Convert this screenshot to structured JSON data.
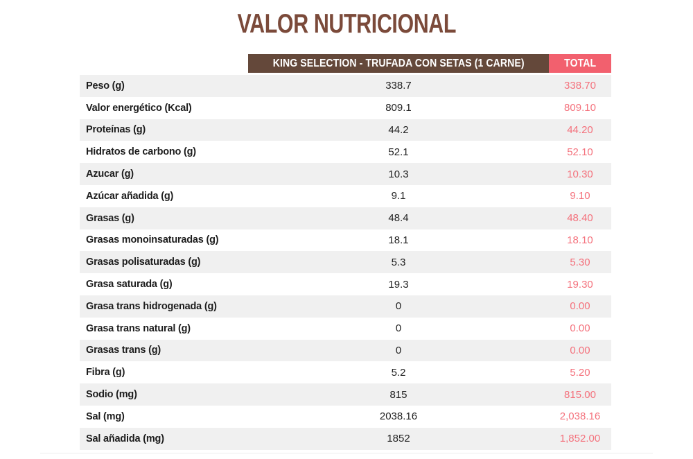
{
  "title": "VALOR NUTRICIONAL",
  "table": {
    "product_header": "KING SELECTION - TRUFADA CON SETAS (1 CARNE)",
    "total_header": "TOTAL",
    "rows": [
      {
        "label": "Peso (g)",
        "value": "338.7",
        "total": "338.70"
      },
      {
        "label": "Valor energético (Kcal)",
        "value": "809.1",
        "total": "809.10"
      },
      {
        "label": "Proteínas (g)",
        "value": "44.2",
        "total": "44.20"
      },
      {
        "label": "Hidratos de carbono (g)",
        "value": "52.1",
        "total": "52.10"
      },
      {
        "label": "Azucar (g)",
        "value": "10.3",
        "total": "10.30"
      },
      {
        "label": "Azúcar añadida (g)",
        "value": "9.1",
        "total": "9.10"
      },
      {
        "label": "Grasas (g)",
        "value": "48.4",
        "total": "48.40"
      },
      {
        "label": "Grasas monoinsaturadas (g)",
        "value": "18.1",
        "total": "18.10"
      },
      {
        "label": "Grasas polisaturadas (g)",
        "value": "5.3",
        "total": "5.30"
      },
      {
        "label": "Grasa saturada (g)",
        "value": "19.3",
        "total": "19.30"
      },
      {
        "label": "Grasa trans hidrogenada (g)",
        "value": "0",
        "total": "0.00"
      },
      {
        "label": "Grasa trans natural (g)",
        "value": "0",
        "total": "0.00"
      },
      {
        "label": "Grasas trans (g)",
        "value": "0",
        "total": "0.00"
      },
      {
        "label": "Fibra (g)",
        "value": "5.2",
        "total": "5.20"
      },
      {
        "label": "Sodio (mg)",
        "value": "815",
        "total": "815.00"
      },
      {
        "label": "Sal (mg)",
        "value": "2038.16",
        "total": "2,038.16"
      },
      {
        "label": "Sal añadida (mg)",
        "value": "1852",
        "total": "1,852.00"
      }
    ]
  },
  "colors": {
    "title_brown": "#7B4A3A",
    "header_brown": "#64483A",
    "accent_pink": "#F2606E",
    "total_text_pink": "#F4717C",
    "row_alt_gray": "#F0F0F0",
    "label_text": "#1D1D1D"
  },
  "chart_data": {
    "type": "table",
    "title": "VALOR NUTRICIONAL",
    "columns": [
      "",
      "KING SELECTION - TRUFADA CON SETAS (1 CARNE)",
      "TOTAL"
    ],
    "rows": [
      [
        "Peso (g)",
        338.7,
        338.7
      ],
      [
        "Valor energético (Kcal)",
        809.1,
        809.1
      ],
      [
        "Proteínas (g)",
        44.2,
        44.2
      ],
      [
        "Hidratos de carbono (g)",
        52.1,
        52.1
      ],
      [
        "Azucar (g)",
        10.3,
        10.3
      ],
      [
        "Azúcar añadida (g)",
        9.1,
        9.1
      ],
      [
        "Grasas (g)",
        48.4,
        48.4
      ],
      [
        "Grasas monoinsaturadas (g)",
        18.1,
        18.1
      ],
      [
        "Grasas polisaturadas (g)",
        5.3,
        5.3
      ],
      [
        "Grasa saturada (g)",
        19.3,
        19.3
      ],
      [
        "Grasa trans hidrogenada (g)",
        0,
        0.0
      ],
      [
        "Grasa trans natural (g)",
        0,
        0.0
      ],
      [
        "Grasas trans (g)",
        0,
        0.0
      ],
      [
        "Fibra (g)",
        5.2,
        5.2
      ],
      [
        "Sodio (mg)",
        815,
        815.0
      ],
      [
        "Sal (mg)",
        2038.16,
        2038.16
      ],
      [
        "Sal añadida (mg)",
        1852,
        1852.0
      ]
    ],
    "layout": {
      "row_striping": true,
      "stripe_start": "first-row",
      "value_alignment": "center"
    }
  }
}
